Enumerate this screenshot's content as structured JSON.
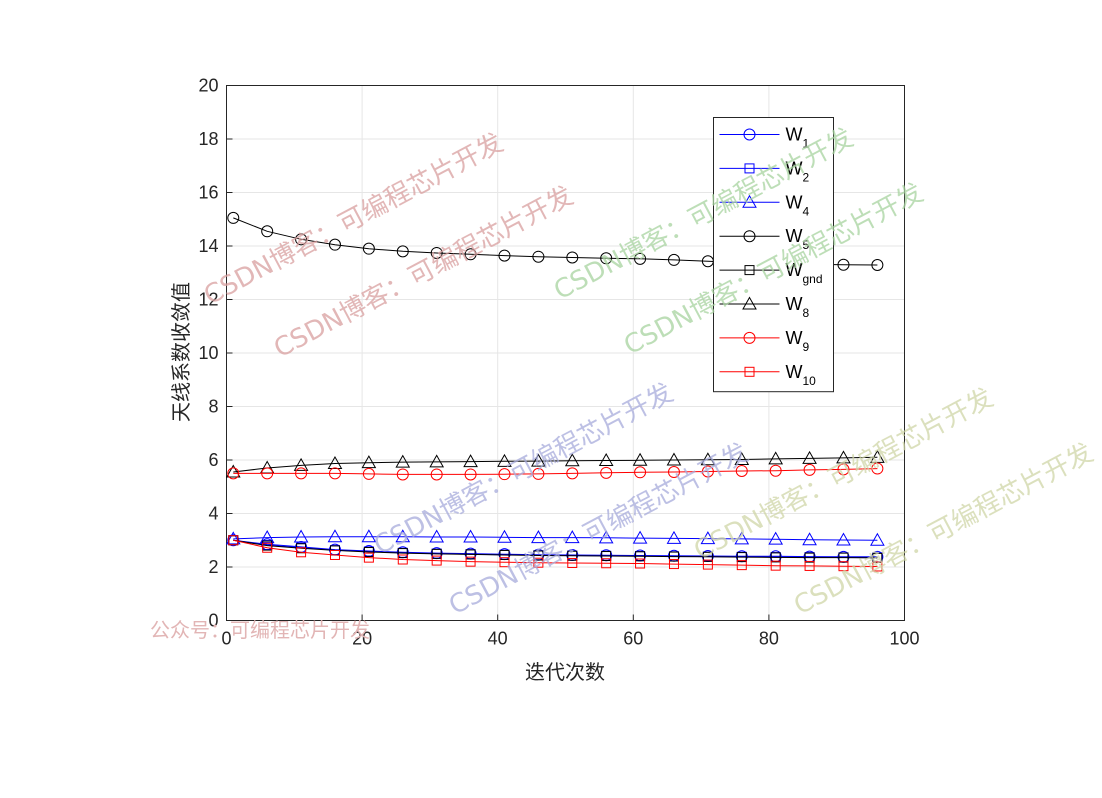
{
  "chart_data": {
    "type": "line",
    "xlabel": "迭代次数",
    "ylabel": "天线系数收敛值",
    "xlim": [
      0,
      100
    ],
    "ylim": [
      0,
      20
    ],
    "xticks": [
      0,
      20,
      40,
      60,
      80,
      100
    ],
    "yticks": [
      0,
      2,
      4,
      6,
      8,
      10,
      12,
      14,
      16,
      18,
      20
    ],
    "grid": true,
    "legend_position": "top-right",
    "x": [
      1,
      6,
      11,
      16,
      21,
      26,
      31,
      36,
      41,
      46,
      51,
      56,
      61,
      66,
      71,
      76,
      81,
      86,
      91,
      96
    ],
    "series": [
      {
        "name": "W",
        "sub": "1",
        "color": "#0000ff",
        "marker": "circle",
        "values": [
          3.0,
          2.85,
          2.75,
          2.65,
          2.6,
          2.55,
          2.52,
          2.5,
          2.48,
          2.46,
          2.45,
          2.44,
          2.43,
          2.42,
          2.41,
          2.4,
          2.4,
          2.39,
          2.38,
          2.38
        ]
      },
      {
        "name": "W",
        "sub": "2",
        "color": "#0000ff",
        "marker": "square",
        "values": [
          3.0,
          2.82,
          2.72,
          2.63,
          2.58,
          2.53,
          2.5,
          2.48,
          2.46,
          2.44,
          2.43,
          2.42,
          2.41,
          2.4,
          2.39,
          2.38,
          2.37,
          2.37,
          2.36,
          2.36
        ]
      },
      {
        "name": "W",
        "sub": "4",
        "color": "#0000ff",
        "marker": "triangle",
        "values": [
          3.05,
          3.1,
          3.12,
          3.13,
          3.13,
          3.13,
          3.12,
          3.12,
          3.11,
          3.1,
          3.1,
          3.09,
          3.08,
          3.07,
          3.06,
          3.05,
          3.04,
          3.02,
          3.01,
          3.0
        ]
      },
      {
        "name": "W",
        "sub": "5",
        "color": "#000000",
        "marker": "circle",
        "values": [
          15.05,
          14.55,
          14.25,
          14.05,
          13.9,
          13.8,
          13.74,
          13.69,
          13.64,
          13.6,
          13.57,
          13.54,
          13.52,
          13.48,
          13.43,
          13.38,
          13.35,
          13.32,
          13.3,
          13.29
        ]
      },
      {
        "name": "W",
        "sub": "gnd",
        "color": "#000000",
        "marker": "square",
        "values": [
          3.0,
          2.8,
          2.7,
          2.62,
          2.56,
          2.52,
          2.49,
          2.47,
          2.45,
          2.43,
          2.42,
          2.41,
          2.4,
          2.39,
          2.38,
          2.37,
          2.36,
          2.35,
          2.35,
          2.34
        ]
      },
      {
        "name": "W",
        "sub": "8",
        "color": "#000000",
        "marker": "triangle",
        "values": [
          5.55,
          5.7,
          5.8,
          5.87,
          5.9,
          5.92,
          5.93,
          5.94,
          5.95,
          5.96,
          5.97,
          5.98,
          5.99,
          6.0,
          6.01,
          6.02,
          6.04,
          6.06,
          6.08,
          6.1
        ]
      },
      {
        "name": "W",
        "sub": "9",
        "color": "#ff0000",
        "marker": "circle",
        "values": [
          5.5,
          5.5,
          5.5,
          5.5,
          5.48,
          5.46,
          5.46,
          5.46,
          5.47,
          5.48,
          5.5,
          5.52,
          5.54,
          5.55,
          5.57,
          5.59,
          5.6,
          5.63,
          5.65,
          5.68
        ]
      },
      {
        "name": "W",
        "sub": "10",
        "color": "#ff0000",
        "marker": "square",
        "values": [
          3.0,
          2.72,
          2.55,
          2.45,
          2.35,
          2.28,
          2.24,
          2.2,
          2.18,
          2.16,
          2.15,
          2.14,
          2.13,
          2.11,
          2.09,
          2.07,
          2.05,
          2.04,
          2.03,
          2.02
        ]
      }
    ]
  },
  "watermarks": {
    "footer": "公众号：可编程芯片开发",
    "blog_red": "CSDN博客：可编程芯片开发",
    "blog_green": "CSDN博客：可编程芯片开发",
    "blog_blue": "CSDN博客：可编程芯片开发",
    "blog_olive": "CSDN博客：可编程芯片开发",
    "color_red": "#d9a0a0",
    "color_green": "#a8d4a0",
    "color_blue": "#a8acdc",
    "color_olive": "#d0d6a8"
  }
}
